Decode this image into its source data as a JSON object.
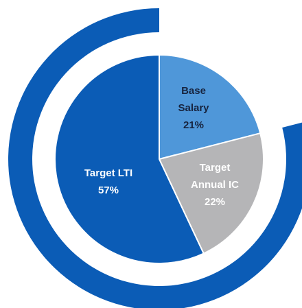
{
  "chart_data": {
    "type": "pie",
    "categories": [
      "Base Salary",
      "Target Annual IC",
      "Target LTI"
    ],
    "values": [
      21,
      22,
      57
    ],
    "value_labels": [
      "21%",
      "22%",
      "57%"
    ],
    "colors": [
      "#4f97d9",
      "#b5b5b7",
      "#0b5cb6"
    ],
    "ring_color": "#0b5cb6"
  }
}
